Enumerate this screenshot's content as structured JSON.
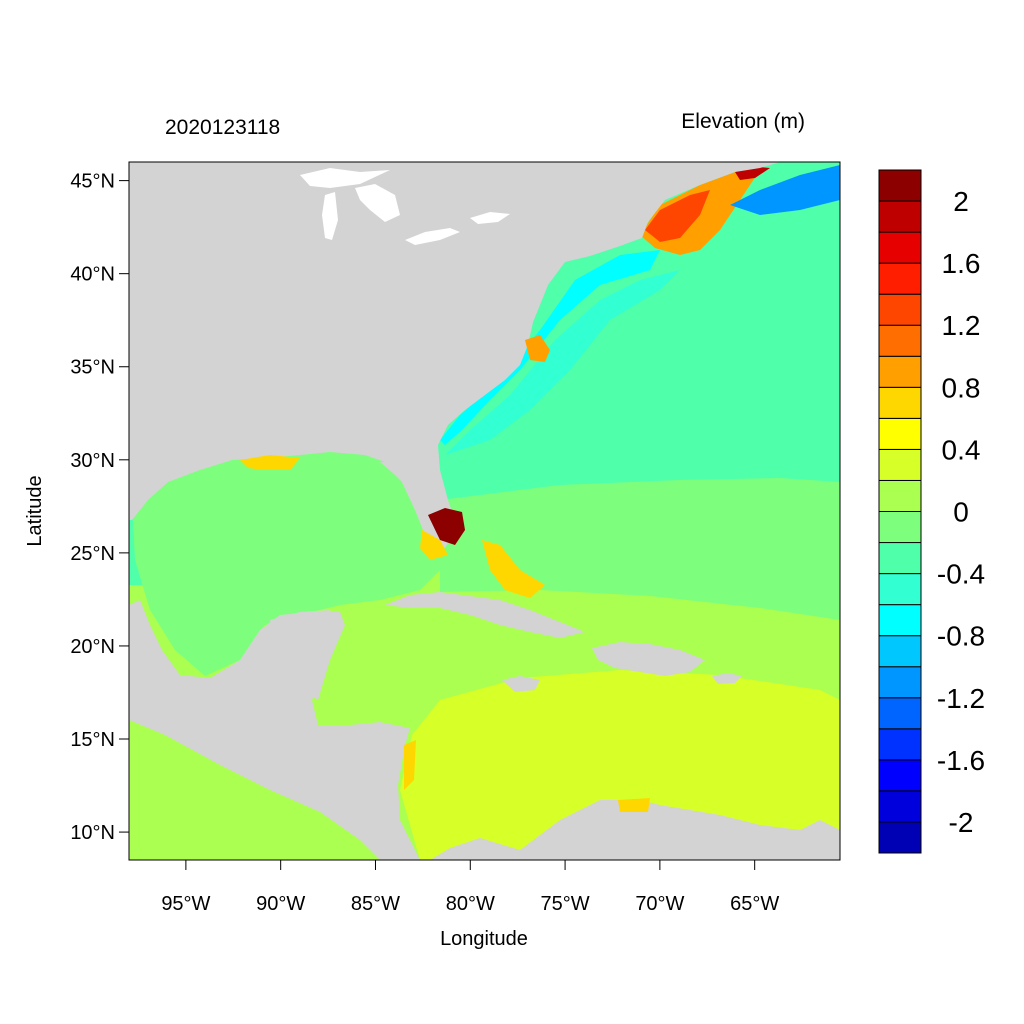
{
  "map": {
    "title_left": "2020123118",
    "title_right": "Elevation (m)",
    "x_axis_label": "Longitude",
    "y_axis_label": "Latitude",
    "lon_range": [
      -98,
      -60.5
    ],
    "lat_range": [
      8.5,
      46
    ],
    "x_ticks": [
      {
        "value": -95,
        "label": "95°W"
      },
      {
        "value": -90,
        "label": "90°W"
      },
      {
        "value": -85,
        "label": "85°W"
      },
      {
        "value": -80,
        "label": "80°W"
      },
      {
        "value": -75,
        "label": "75°W"
      },
      {
        "value": -70,
        "label": "70°W"
      },
      {
        "value": -65,
        "label": "65°W"
      }
    ],
    "y_ticks": [
      {
        "value": 45,
        "label": "45°N"
      },
      {
        "value": 40,
        "label": "40°N"
      },
      {
        "value": 35,
        "label": "35°N"
      },
      {
        "value": 30,
        "label": "30°N"
      },
      {
        "value": 25,
        "label": "25°N"
      },
      {
        "value": 20,
        "label": "20°N"
      },
      {
        "value": 15,
        "label": "15°N"
      },
      {
        "value": 10,
        "label": "10°N"
      }
    ],
    "land_color": "#d3d3d3",
    "lake_color": "#ffffff"
  },
  "colorbar": {
    "colors": [
      "#0000b4",
      "#0000dc",
      "#0000ff",
      "#0032ff",
      "#0064ff",
      "#0096ff",
      "#00c8ff",
      "#00ffff",
      "#32ffd2",
      "#50ffaa",
      "#7dff7d",
      "#aaff50",
      "#d7ff28",
      "#ffff00",
      "#ffd700",
      "#ffa000",
      "#ff6e00",
      "#ff4600",
      "#ff1e00",
      "#e60000",
      "#be0000",
      "#8c0000"
    ],
    "labels": [
      {
        "after_box": 20,
        "text": "2"
      },
      {
        "after_box": 18,
        "text": "1.6"
      },
      {
        "after_box": 16,
        "text": "1.2"
      },
      {
        "after_box": 14,
        "text": "0.8"
      },
      {
        "after_box": 12,
        "text": "0.4"
      },
      {
        "after_box": 10,
        "text": "0"
      },
      {
        "after_box": 8,
        "text": "-0.4"
      },
      {
        "after_box": 6,
        "text": "-0.8"
      },
      {
        "after_box": 4,
        "text": "-1.2"
      },
      {
        "after_box": 2,
        "text": "-1.6"
      },
      {
        "after_box": 0,
        "text": "-2"
      }
    ]
  }
}
